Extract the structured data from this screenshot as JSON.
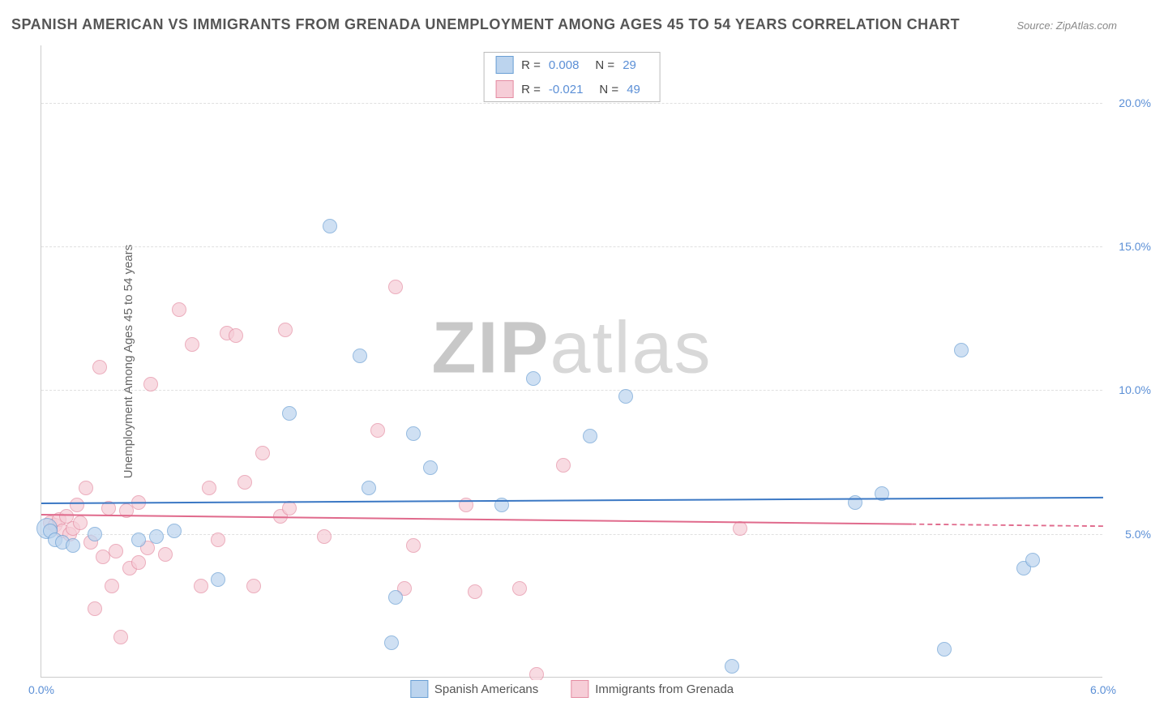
{
  "title": "SPANISH AMERICAN VS IMMIGRANTS FROM GRENADA UNEMPLOYMENT AMONG AGES 45 TO 54 YEARS CORRELATION CHART",
  "source": "Source: ZipAtlas.com",
  "watermark_bold": "ZIP",
  "watermark_light": "atlas",
  "y_axis_title": "Unemployment Among Ages 45 to 54 years",
  "chart": {
    "type": "scatter",
    "background_color": "#ffffff",
    "grid_color": "#e0e0e0",
    "axis_color": "#cccccc",
    "xlim": [
      0.0,
      6.0
    ],
    "ylim": [
      0.0,
      22.0
    ],
    "x_ticks": [
      {
        "v": 0.0,
        "label": "0.0%"
      },
      {
        "v": 6.0,
        "label": "6.0%"
      }
    ],
    "y_ticks": [
      {
        "v": 5.0,
        "label": "5.0%"
      },
      {
        "v": 10.0,
        "label": "10.0%"
      },
      {
        "v": 15.0,
        "label": "15.0%"
      },
      {
        "v": 20.0,
        "label": "20.0%"
      }
    ],
    "marker_size": 18,
    "series": [
      {
        "id": "spanish",
        "label": "Spanish Americans",
        "fill": "#bcd4ee",
        "stroke": "#6a9fd4",
        "fill_opacity": 0.7,
        "R": "0.008",
        "N": "29",
        "trend": {
          "y_start": 6.1,
          "y_end": 6.3,
          "color": "#3b78c4",
          "width": 2,
          "dash_end": false
        },
        "points": [
          {
            "x": 0.03,
            "y": 5.2,
            "size": 26
          },
          {
            "x": 0.05,
            "y": 5.1
          },
          {
            "x": 0.08,
            "y": 4.8
          },
          {
            "x": 0.12,
            "y": 4.7
          },
          {
            "x": 0.18,
            "y": 4.6
          },
          {
            "x": 0.3,
            "y": 5.0
          },
          {
            "x": 0.55,
            "y": 4.8
          },
          {
            "x": 0.65,
            "y": 4.9
          },
          {
            "x": 0.75,
            "y": 5.1
          },
          {
            "x": 1.0,
            "y": 3.4
          },
          {
            "x": 1.4,
            "y": 9.2
          },
          {
            "x": 1.63,
            "y": 15.7
          },
          {
            "x": 1.8,
            "y": 11.2
          },
          {
            "x": 1.85,
            "y": 6.6
          },
          {
            "x": 2.0,
            "y": 2.8
          },
          {
            "x": 1.98,
            "y": 1.2
          },
          {
            "x": 2.1,
            "y": 8.5
          },
          {
            "x": 2.2,
            "y": 7.3
          },
          {
            "x": 2.6,
            "y": 6.0
          },
          {
            "x": 2.78,
            "y": 10.4
          },
          {
            "x": 3.1,
            "y": 8.4
          },
          {
            "x": 3.3,
            "y": 9.8
          },
          {
            "x": 3.9,
            "y": 0.4
          },
          {
            "x": 4.6,
            "y": 6.1
          },
          {
            "x": 4.75,
            "y": 6.4
          },
          {
            "x": 5.1,
            "y": 1.0
          },
          {
            "x": 5.2,
            "y": 11.4
          },
          {
            "x": 5.55,
            "y": 3.8
          },
          {
            "x": 5.6,
            "y": 4.1
          }
        ]
      },
      {
        "id": "grenada",
        "label": "Immigrants from Grenada",
        "fill": "#f6cdd7",
        "stroke": "#e48ca2",
        "fill_opacity": 0.7,
        "R": "-0.021",
        "N": "49",
        "trend": {
          "y_start": 5.7,
          "y_end": 5.3,
          "color": "#e06a8c",
          "width": 2,
          "dash_end": true,
          "dash_from": 0.82
        },
        "points": [
          {
            "x": 0.05,
            "y": 5.4
          },
          {
            "x": 0.08,
            "y": 5.3
          },
          {
            "x": 0.1,
            "y": 5.5
          },
          {
            "x": 0.12,
            "y": 5.1
          },
          {
            "x": 0.14,
            "y": 5.6
          },
          {
            "x": 0.16,
            "y": 5.0
          },
          {
            "x": 0.18,
            "y": 5.2
          },
          {
            "x": 0.2,
            "y": 6.0
          },
          {
            "x": 0.22,
            "y": 5.4
          },
          {
            "x": 0.25,
            "y": 6.6
          },
          {
            "x": 0.28,
            "y": 4.7
          },
          {
            "x": 0.3,
            "y": 2.4
          },
          {
            "x": 0.33,
            "y": 10.8
          },
          {
            "x": 0.35,
            "y": 4.2
          },
          {
            "x": 0.4,
            "y": 3.2
          },
          {
            "x": 0.42,
            "y": 4.4
          },
          {
            "x": 0.45,
            "y": 1.4
          },
          {
            "x": 0.48,
            "y": 5.8
          },
          {
            "x": 0.5,
            "y": 3.8
          },
          {
            "x": 0.55,
            "y": 4.0
          },
          {
            "x": 0.6,
            "y": 4.5
          },
          {
            "x": 0.62,
            "y": 10.2
          },
          {
            "x": 0.7,
            "y": 4.3
          },
          {
            "x": 0.78,
            "y": 12.8
          },
          {
            "x": 0.85,
            "y": 11.6
          },
          {
            "x": 0.9,
            "y": 3.2
          },
          {
            "x": 0.95,
            "y": 6.6
          },
          {
            "x": 1.0,
            "y": 4.8
          },
          {
            "x": 1.05,
            "y": 12.0
          },
          {
            "x": 1.1,
            "y": 11.9
          },
          {
            "x": 1.15,
            "y": 6.8
          },
          {
            "x": 1.2,
            "y": 3.2
          },
          {
            "x": 1.25,
            "y": 7.8
          },
          {
            "x": 1.35,
            "y": 5.6
          },
          {
            "x": 1.38,
            "y": 12.1
          },
          {
            "x": 1.4,
            "y": 5.9
          },
          {
            "x": 1.9,
            "y": 8.6
          },
          {
            "x": 2.0,
            "y": 13.6
          },
          {
            "x": 2.05,
            "y": 3.1
          },
          {
            "x": 2.1,
            "y": 4.6
          },
          {
            "x": 2.4,
            "y": 6.0
          },
          {
            "x": 2.45,
            "y": 3.0
          },
          {
            "x": 2.7,
            "y": 3.1
          },
          {
            "x": 2.8,
            "y": 0.1
          },
          {
            "x": 2.95,
            "y": 7.4
          },
          {
            "x": 3.95,
            "y": 5.2
          },
          {
            "x": 1.6,
            "y": 4.9
          },
          {
            "x": 0.55,
            "y": 6.1
          },
          {
            "x": 0.38,
            "y": 5.9
          }
        ]
      }
    ]
  },
  "legend_top": {
    "R_label": "R  =",
    "N_label": "N  ="
  }
}
